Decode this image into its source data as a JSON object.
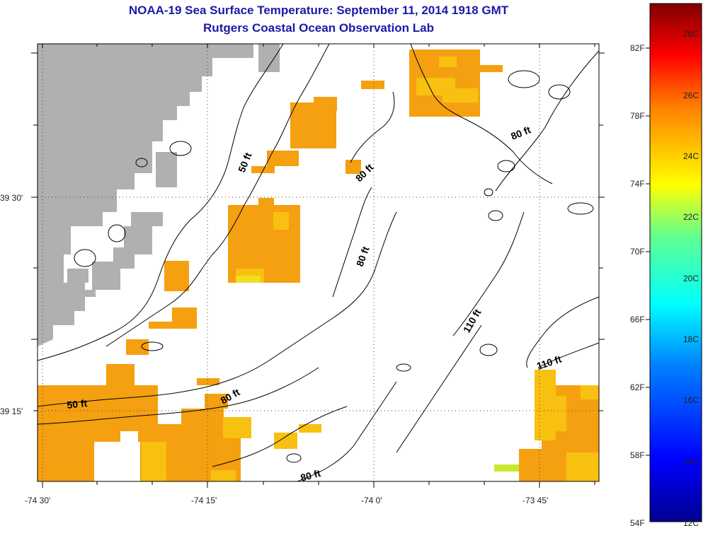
{
  "title": "NOAA-19 Sea Surface Temperature:  September 11, 2014 1918 GMT",
  "subtitle": "Rutgers Coastal Ocean Observation Lab",
  "colors": {
    "land": "#b0b0b0",
    "background": "#ffffff",
    "title": "#1a1aa8",
    "sst_24c": "#f5a010",
    "sst_23c": "#f8c010",
    "sst_22c": "#e8e820"
  },
  "lon_ticks": [
    "-74 30'",
    "-74 15'",
    "-74 0'",
    "-73 45'"
  ],
  "lat_ticks": [
    "39 30'",
    "39 15'"
  ],
  "contour_labels": [
    "50 ft",
    "50 ft",
    "80 ft",
    "80 ft",
    "80 ft",
    "80 ft",
    "80 ft",
    "110 ft",
    "110 ft"
  ],
  "colorbar": {
    "fahrenheit": [
      "82F",
      "78F",
      "74F",
      "70F",
      "66F",
      "62F",
      "58F",
      "54F"
    ],
    "celsius": [
      "28C",
      "26C",
      "24C",
      "22C",
      "20C",
      "18C",
      "16C",
      "14C",
      "12C"
    ]
  }
}
